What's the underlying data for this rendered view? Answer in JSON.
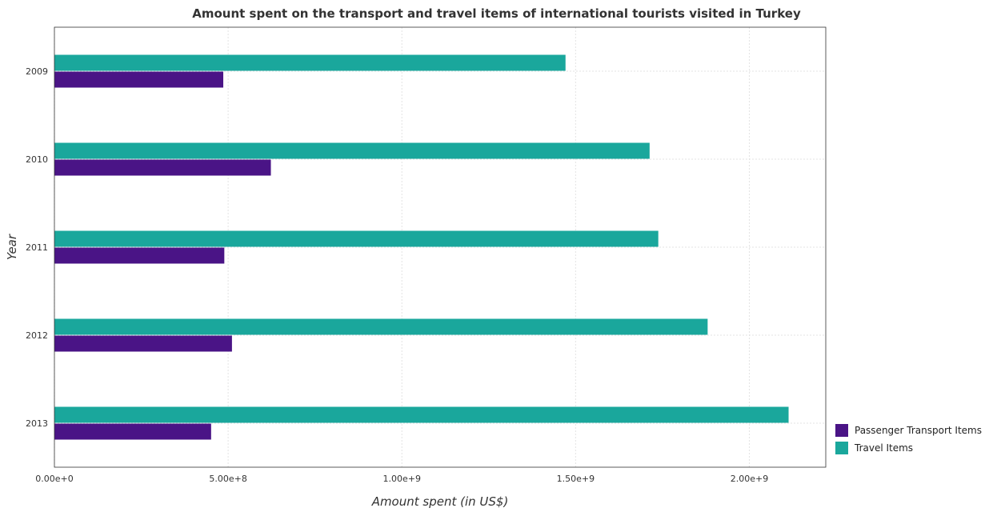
{
  "chart_data": {
    "type": "bar",
    "orientation": "horizontal",
    "title": "Amount spent on the transport and travel items of international tourists visited in Turkey",
    "xlabel": "Amount spent (in US$)",
    "ylabel": "Year",
    "categories": [
      "2009",
      "2010",
      "2011",
      "2012",
      "2013"
    ],
    "series": [
      {
        "name": "Passenger Transport Items",
        "color": "#4a1486",
        "values": [
          486000000,
          623000000,
          489000000,
          511000000,
          451000000
        ]
      },
      {
        "name": "Travel Items",
        "color": "#1aa79c",
        "values": [
          1471000000,
          1713000000,
          1738000000,
          1880000000,
          2113000000
        ]
      }
    ],
    "xlim": [
      0,
      2220000000
    ],
    "xticks": [
      0,
      500000000,
      1000000000,
      1500000000,
      2000000000
    ],
    "xtick_labels": [
      "0.00e+0",
      "5.00e+8",
      "1.00e+9",
      "1.50e+9",
      "2.00e+9"
    ],
    "grid": true,
    "legend_position": "bottom-right"
  }
}
